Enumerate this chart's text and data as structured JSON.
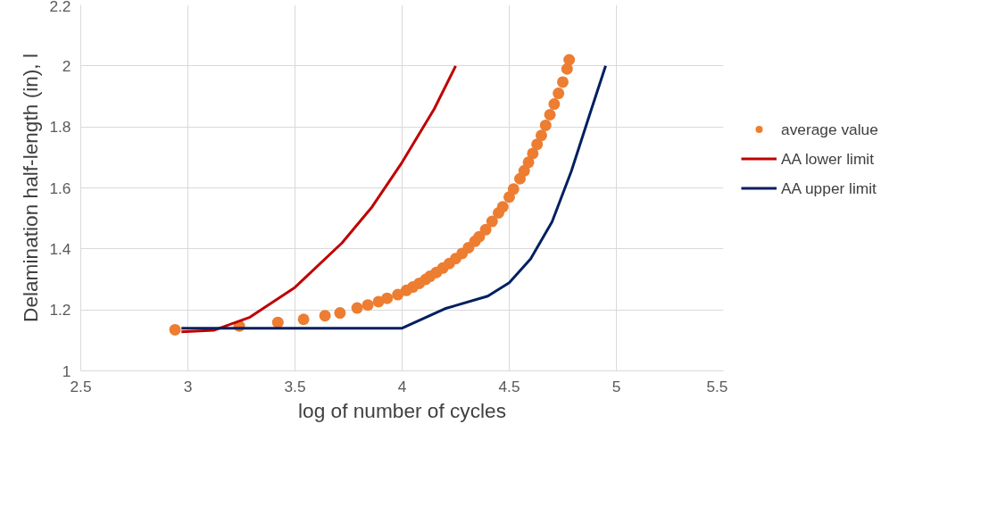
{
  "chart_data": {
    "type": "scatter",
    "xlabel": "log of number of cycles",
    "ylabel": "Delamination half-length (in), l",
    "xlim": [
      2.5,
      5.5
    ],
    "xticks": [
      2.5,
      3,
      3.5,
      4,
      4.5,
      5,
      5.5
    ],
    "ylim": [
      1,
      2.2
    ],
    "yticks": [
      1,
      1.2,
      1.4,
      1.6,
      1.8,
      2,
      2.2
    ],
    "grid": true,
    "legend": "right",
    "series": [
      {
        "name": "average value",
        "marker": "circle",
        "color": "#ed7d31",
        "x": [
          2.94,
          3.24,
          3.42,
          3.54,
          3.64,
          3.71,
          3.79,
          3.84,
          3.89,
          3.93,
          3.98,
          4.02,
          4.05,
          4.08,
          4.11,
          4.13,
          4.16,
          4.19,
          4.22,
          4.25,
          4.28,
          4.31,
          4.34,
          4.36,
          4.39,
          4.42,
          4.45,
          4.47,
          4.5,
          4.52,
          4.55,
          4.57,
          4.59,
          4.61,
          4.63,
          4.65,
          4.67,
          4.69,
          4.71,
          4.73,
          4.75,
          4.77,
          4.78
        ],
        "values": [
          1.135,
          1.147,
          1.159,
          1.169,
          1.181,
          1.19,
          1.206,
          1.216,
          1.227,
          1.238,
          1.25,
          1.264,
          1.275,
          1.287,
          1.3,
          1.31,
          1.323,
          1.337,
          1.352,
          1.368,
          1.385,
          1.404,
          1.425,
          1.44,
          1.463,
          1.49,
          1.518,
          1.538,
          1.57,
          1.596,
          1.63,
          1.656,
          1.684,
          1.713,
          1.743,
          1.772,
          1.805,
          1.84,
          1.875,
          1.91,
          1.947,
          1.99,
          2.02
        ]
      },
      {
        "name": "AA lower limit",
        "type": "line",
        "line_style": "solid",
        "color": "#c00000",
        "x": [
          2.97,
          3.12,
          3.29,
          3.5,
          3.72,
          3.86,
          4.0,
          4.15,
          4.25
        ],
        "values": [
          1.128,
          1.133,
          1.176,
          1.274,
          1.42,
          1.538,
          1.684,
          1.859,
          2.0
        ]
      },
      {
        "name": "AA upper limit",
        "type": "line",
        "line_style": "solid",
        "color": "#002060",
        "x": [
          2.97,
          4.0,
          4.2,
          4.4,
          4.5,
          4.6,
          4.7,
          4.79,
          4.88,
          4.95
        ],
        "values": [
          1.14,
          1.14,
          1.204,
          1.245,
          1.289,
          1.367,
          1.489,
          1.655,
          1.85,
          2.0
        ]
      }
    ]
  }
}
